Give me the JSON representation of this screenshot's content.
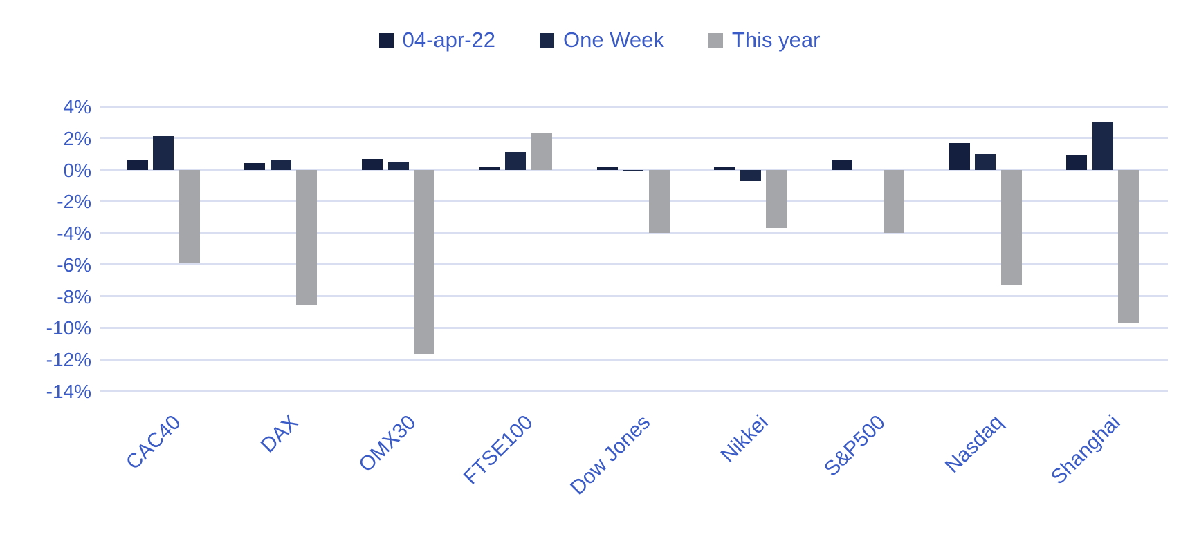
{
  "chart_data": {
    "type": "bar",
    "title": "",
    "xlabel": "",
    "ylabel": "",
    "categories": [
      "CAC40",
      "DAX",
      "OMX30",
      "FTSE100",
      "Dow Jones",
      "Nikkei",
      "S&P500",
      "Nasdaq",
      "Shanghai"
    ],
    "series": [
      {
        "name": "04-apr-22",
        "color": "#141E3E",
        "values": [
          0.6,
          0.4,
          0.7,
          0.2,
          0.2,
          0.2,
          0.6,
          1.7,
          0.9
        ]
      },
      {
        "name": "One Week",
        "color": "#1B2747",
        "values": [
          2.1,
          0.6,
          0.5,
          1.1,
          -0.1,
          -0.7,
          0.0,
          1.0,
          3.0
        ]
      },
      {
        "name": "This year",
        "color": "#A5A6A9",
        "values": [
          -5.9,
          -8.6,
          -11.7,
          2.3,
          -4.0,
          -3.7,
          -4.0,
          -7.3,
          -9.7
        ]
      }
    ],
    "ylim": [
      -14,
      4
    ],
    "yticks": {
      "labels": [
        "4%",
        "2%",
        "0%",
        "-2%",
        "-4%",
        "-6%",
        "-8%",
        "-10%",
        "-12%",
        "-14%"
      ],
      "values": [
        4,
        2,
        0,
        -2,
        -4,
        -6,
        -8,
        -10,
        -12,
        -14
      ]
    },
    "grid": "horizontal",
    "legend_position": "top-center",
    "colors": {
      "axis_text": "#3A5BC5",
      "gridline": "#D9DEF1",
      "background": "#FFFFFF"
    }
  }
}
